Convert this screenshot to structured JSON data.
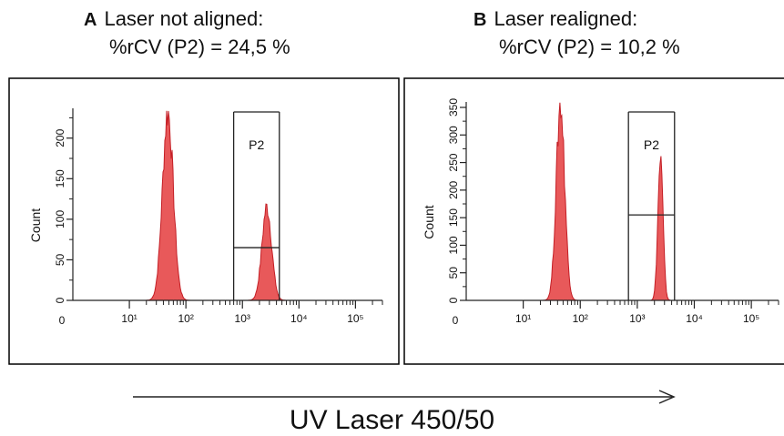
{
  "panels": [
    {
      "letter": "A",
      "heading": "Laser not aligned:",
      "metric": "%rCV (P2) = 24,5 %"
    },
    {
      "letter": "B",
      "heading": "Laser realigned:",
      "metric": "%rCV (P2) = 10,2 %"
    }
  ],
  "x_axis_label": "UV Laser 450/50",
  "colors": {
    "histogram_fill": "#e8595a",
    "histogram_stroke": "#c41e25",
    "frame": "#000000"
  },
  "chart_data": [
    {
      "type": "area",
      "panel": "A",
      "ylabel": "Count",
      "x_scale": "log",
      "xlim": [
        1,
        300000
      ],
      "ylim": [
        0,
        230
      ],
      "x_ticks": [
        "0",
        "10¹",
        "10²",
        "10³",
        "10⁴",
        "10⁵"
      ],
      "y_ticks": [
        0,
        50,
        100,
        150,
        200
      ],
      "gate": {
        "name": "P2",
        "x_range": [
          700,
          4500
        ],
        "marker_level": 65
      },
      "series": [
        {
          "peaks": [
            {
              "x": 48,
              "height": 232,
              "width": 0.095
            },
            {
              "x": 2700,
              "height": 115,
              "width": 0.085
            }
          ]
        }
      ]
    },
    {
      "type": "area",
      "panel": "B",
      "ylabel": "Count",
      "x_scale": "log",
      "xlim": [
        1,
        300000
      ],
      "ylim": [
        0,
        350
      ],
      "x_ticks": [
        "0",
        "10¹",
        "10²",
        "10³",
        "10⁴",
        "10⁵"
      ],
      "y_ticks": [
        0,
        50,
        100,
        150,
        200,
        250,
        300,
        350
      ],
      "gate": {
        "name": "P2",
        "x_range": [
          700,
          4500
        ],
        "marker_level": 155
      },
      "series": [
        {
          "peaks": [
            {
              "x": 45,
              "height": 355,
              "width": 0.075
            },
            {
              "x": 2550,
              "height": 255,
              "width": 0.045
            }
          ]
        }
      ]
    }
  ]
}
